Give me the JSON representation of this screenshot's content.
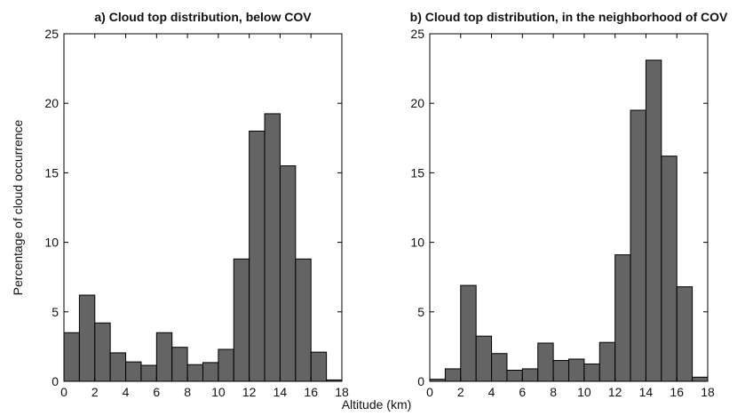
{
  "chart_data": [
    {
      "type": "histogram",
      "title": "a) Cloud top distribution, below COV",
      "xlabel": "Altitude (km)",
      "ylabel": "Percentage of cloud occurrence",
      "bins": [
        0,
        1,
        2,
        3,
        4,
        5,
        6,
        7,
        8,
        9,
        10,
        11,
        12,
        13,
        14,
        15,
        16,
        17,
        18
      ],
      "values": [
        3.5,
        6.2,
        4.2,
        2.05,
        1.4,
        1.15,
        3.5,
        2.45,
        1.2,
        1.35,
        2.3,
        8.8,
        18.0,
        19.25,
        15.5,
        8.8,
        2.1,
        0.1
      ],
      "color": "#646464",
      "xlim": [
        0,
        18
      ],
      "xticks": [
        0,
        2,
        4,
        6,
        8,
        10,
        12,
        14,
        16,
        18
      ],
      "ylim": [
        0,
        25
      ],
      "yticks": [
        0,
        5,
        10,
        15,
        20,
        25
      ]
    },
    {
      "type": "histogram",
      "title": "b) Cloud top distribution, in the neighborhood of COV",
      "bins": [
        0,
        1,
        2,
        3,
        4,
        5,
        6,
        7,
        8,
        9,
        10,
        11,
        12,
        13,
        14,
        15,
        16,
        17,
        18
      ],
      "values": [
        0.15,
        0.9,
        6.9,
        3.25,
        2.0,
        0.8,
        0.9,
        2.75,
        1.5,
        1.6,
        1.25,
        2.8,
        9.1,
        19.5,
        23.1,
        16.2,
        6.8,
        0.3
      ],
      "color": "#646464",
      "xlim": [
        0,
        18
      ],
      "xticks": [
        0,
        2,
        4,
        6,
        8,
        10,
        12,
        14,
        16,
        18
      ],
      "ylim": [
        0,
        25
      ],
      "yticks": [
        0,
        5,
        10,
        15,
        20,
        25
      ]
    }
  ]
}
